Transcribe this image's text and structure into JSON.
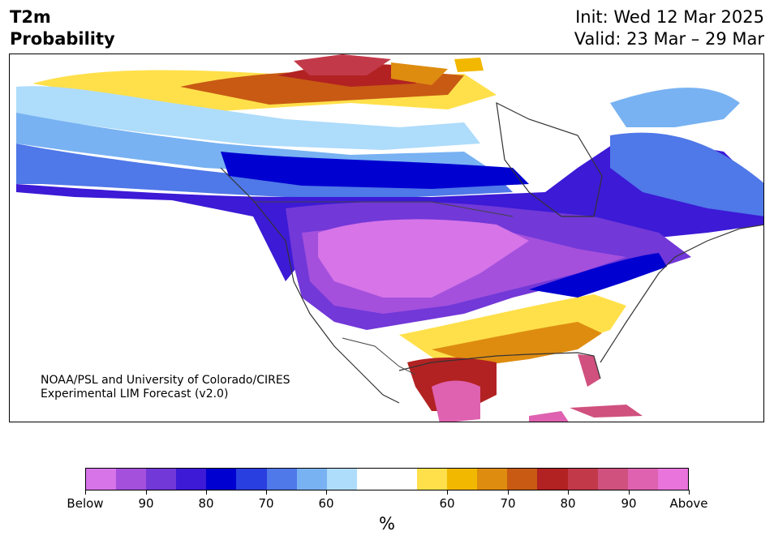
{
  "header": {
    "title_line1": "T2m",
    "title_line2": "Probability",
    "init": "Init: Wed 12 Mar 2025",
    "valid": "Valid: 23 Mar – 29 Mar"
  },
  "map": {
    "credit_line1": "NOAA/PSL and University of Colorado/CIRES",
    "credit_line2": "Experimental LIM Forecast (v2.0)"
  },
  "colorbar": {
    "colors": [
      "#d674e8",
      "#a450dd",
      "#7238d8",
      "#3c1ad6",
      "#0000d0",
      "#2a3fdf",
      "#4f78e8",
      "#78b2f2",
      "#aedcfb",
      "#ffffff",
      "#ffffff",
      "#ffe04a",
      "#f2b800",
      "#de8c10",
      "#c85a14",
      "#b22222",
      "#c23a4a",
      "#d0507e",
      "#de62b0",
      "#e874dc"
    ],
    "tick_labels": [
      "Below",
      "90",
      "80",
      "70",
      "60",
      "60",
      "70",
      "80",
      "90",
      "Above"
    ],
    "unit": "%"
  }
}
